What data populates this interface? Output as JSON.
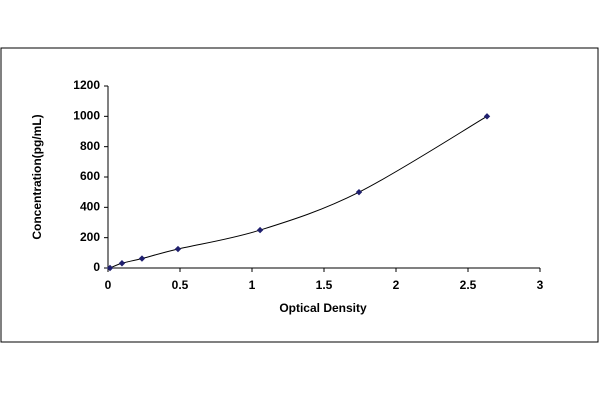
{
  "chart_data": {
    "type": "scatter-smooth",
    "x_label": "Optical Density",
    "y_label": "Concentration(pg/mL)",
    "x": [
      0.014,
      0.097,
      0.236,
      0.486,
      1.056,
      1.743,
      2.632
    ],
    "series": [
      {
        "color": "#1f1f6e",
        "values": [
          0,
          31.25,
          62.5,
          125,
          250,
          500,
          1000
        ]
      }
    ],
    "xlim": [
      0,
      3
    ],
    "xticks": [
      0,
      0.5,
      1,
      1.5,
      2,
      2.5,
      3
    ],
    "ylim": [
      0,
      1200
    ],
    "yticks": [
      0,
      200,
      400,
      600,
      800,
      1000,
      1200
    ],
    "grid": false
  }
}
